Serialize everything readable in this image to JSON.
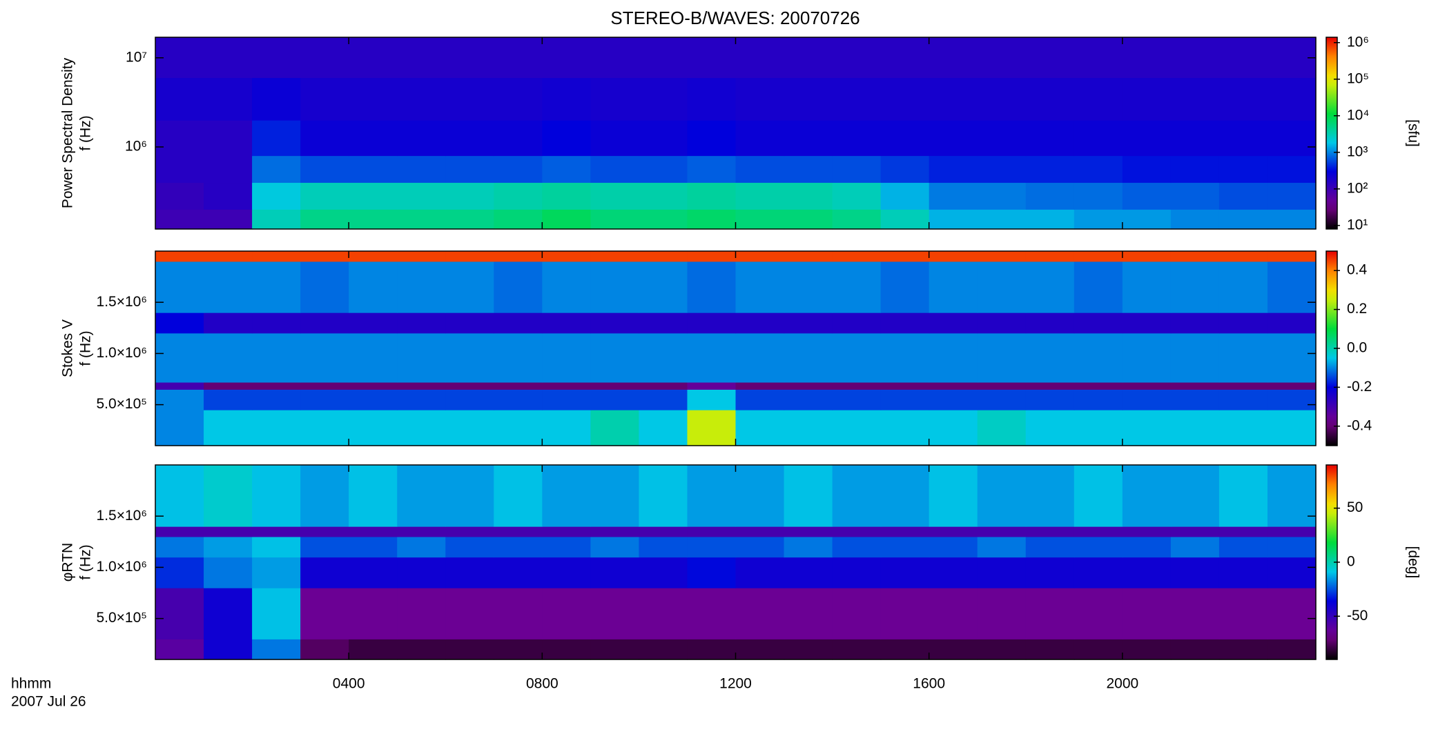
{
  "chart_data": [
    {
      "type": "heatmap",
      "title": "STEREO-B/WAVES: 20070726",
      "ylabel": [
        "Power Spectral Density",
        "f (Hz)"
      ],
      "colorbar_label": "[sfu]",
      "colormap": "rainbow",
      "ylog": true,
      "clog": true,
      "ylim": [
        120000,
        17000000
      ],
      "yticks": [
        {
          "value": 1000000,
          "label": "10⁶"
        },
        {
          "value": 10000000,
          "label": "10⁷"
        }
      ],
      "clim": [
        8,
        1400000
      ],
      "cticks": [
        {
          "value": 10,
          "label": "10¹"
        },
        {
          "value": 100,
          "label": "10²"
        },
        {
          "value": 1000,
          "label": "10³"
        },
        {
          "value": 10000,
          "label": "10⁴"
        },
        {
          "value": 100000,
          "label": "10⁵"
        },
        {
          "value": 1000000,
          "label": "10⁶"
        }
      ],
      "x_edges": [
        0,
        1,
        2,
        3,
        4,
        5,
        6,
        7,
        8,
        9,
        10,
        11,
        12,
        13,
        14,
        15,
        16,
        17,
        18,
        19,
        20,
        21,
        22,
        23,
        24
      ],
      "y_edges": [
        120000,
        200000,
        400000,
        800000,
        2000000,
        6000000,
        17000000
      ],
      "values": [
        [
          100,
          100,
          3000,
          5000,
          5000,
          5000,
          5000,
          6000,
          8000,
          6000,
          6000,
          7000,
          6000,
          6000,
          5000,
          3000,
          1500,
          1500,
          1500,
          1200,
          1200,
          1000,
          1000,
          1000
        ],
        [
          120,
          150,
          2000,
          3000,
          3000,
          3000,
          3000,
          3500,
          4000,
          3500,
          3500,
          4000,
          3500,
          3500,
          3000,
          1500,
          900,
          900,
          800,
          800,
          700,
          700,
          600,
          600
        ],
        [
          150,
          150,
          800,
          600,
          600,
          600,
          600,
          600,
          700,
          600,
          600,
          700,
          600,
          600,
          600,
          500,
          400,
          400,
          400,
          400,
          350,
          350,
          350,
          350
        ],
        [
          150,
          150,
          400,
          250,
          250,
          250,
          250,
          250,
          300,
          250,
          250,
          300,
          250,
          250,
          250,
          250,
          250,
          250,
          250,
          250,
          250,
          250,
          250,
          250
        ],
        [
          200,
          200,
          250,
          200,
          200,
          200,
          200,
          200,
          220,
          200,
          200,
          220,
          200,
          200,
          200,
          200,
          200,
          200,
          200,
          200,
          200,
          200,
          200,
          200
        ],
        [
          150,
          150,
          150,
          150,
          150,
          150,
          150,
          150,
          150,
          150,
          150,
          150,
          150,
          150,
          150,
          150,
          150,
          150,
          150,
          150,
          150,
          150,
          150,
          150
        ]
      ]
    },
    {
      "type": "heatmap",
      "ylabel": [
        "Stokes V",
        "f (Hz)"
      ],
      "colormap": "rainbow",
      "ylog": false,
      "clog": false,
      "ylim": [
        100000,
        2000000
      ],
      "yticks": [
        {
          "value": 500000,
          "label": "5.0×10⁵"
        },
        {
          "value": 1000000,
          "label": "1.0×10⁶"
        },
        {
          "value": 1500000,
          "label": "1.5×10⁶"
        }
      ],
      "clim": [
        -0.5,
        0.5
      ],
      "cticks": [
        -0.4,
        -0.2,
        {
          "value": 0,
          "label": "0.0"
        },
        0.2,
        0.4
      ],
      "x_edges": [
        0,
        1,
        2,
        3,
        4,
        5,
        6,
        7,
        8,
        9,
        10,
        11,
        12,
        13,
        14,
        15,
        16,
        17,
        18,
        19,
        20,
        21,
        22,
        23,
        24
      ],
      "y_edges": [
        100000,
        450000,
        650000,
        720000,
        1200000,
        1400000,
        1900000,
        2000000
      ],
      "values": [
        [
          -0.1,
          -0.05,
          -0.05,
          -0.05,
          -0.05,
          -0.05,
          -0.05,
          -0.05,
          -0.05,
          0.0,
          -0.05,
          0.25,
          -0.05,
          -0.05,
          -0.05,
          -0.05,
          -0.05,
          -0.02,
          -0.05,
          -0.05,
          -0.05,
          -0.05,
          -0.05,
          -0.05
        ],
        [
          -0.1,
          -0.15,
          -0.15,
          -0.15,
          -0.15,
          -0.15,
          -0.15,
          -0.15,
          -0.15,
          -0.15,
          -0.15,
          -0.05,
          -0.15,
          -0.15,
          -0.15,
          -0.15,
          -0.15,
          -0.15,
          -0.15,
          -0.15,
          -0.15,
          -0.15,
          -0.15,
          -0.15
        ],
        [
          -0.3,
          -0.4,
          -0.4,
          -0.4,
          -0.4,
          -0.4,
          -0.4,
          -0.4,
          -0.4,
          -0.4,
          -0.4,
          -0.35,
          -0.4,
          -0.4,
          -0.4,
          -0.4,
          -0.4,
          -0.4,
          -0.4,
          -0.4,
          -0.4,
          -0.4,
          -0.4,
          -0.4
        ],
        [
          -0.1,
          -0.1,
          -0.1,
          -0.1,
          -0.1,
          -0.1,
          -0.1,
          -0.1,
          -0.1,
          -0.1,
          -0.1,
          -0.1,
          -0.1,
          -0.1,
          -0.1,
          -0.1,
          -0.1,
          -0.1,
          -0.1,
          -0.1,
          -0.1,
          -0.1,
          -0.1,
          -0.1
        ],
        [
          -0.2,
          -0.25,
          -0.25,
          -0.25,
          -0.25,
          -0.25,
          -0.25,
          -0.25,
          -0.25,
          -0.25,
          -0.25,
          -0.25,
          -0.25,
          -0.25,
          -0.25,
          -0.25,
          -0.25,
          -0.25,
          -0.25,
          -0.25,
          -0.25,
          -0.25,
          -0.25,
          -0.25
        ],
        [
          -0.1,
          -0.1,
          -0.1,
          -0.12,
          -0.1,
          -0.1,
          -0.1,
          -0.12,
          -0.1,
          -0.1,
          -0.1,
          -0.12,
          -0.1,
          -0.1,
          -0.1,
          -0.12,
          -0.1,
          -0.1,
          -0.1,
          -0.12,
          -0.1,
          -0.1,
          -0.1,
          -0.12
        ],
        [
          0.45,
          0.45,
          0.45,
          0.45,
          0.45,
          0.45,
          0.45,
          0.45,
          0.45,
          0.45,
          0.45,
          0.45,
          0.45,
          0.45,
          0.45,
          0.45,
          0.45,
          0.45,
          0.45,
          0.45,
          0.45,
          0.45,
          0.45,
          0.45
        ]
      ]
    },
    {
      "type": "heatmap",
      "ylabel": [
        "φRTN",
        "f (Hz)"
      ],
      "colorbar_label": "[deg]",
      "colormap": "rainbow",
      "ylog": false,
      "clog": false,
      "ylim": [
        100000,
        2000000
      ],
      "yticks": [
        {
          "value": 500000,
          "label": "5.0×10⁵"
        },
        {
          "value": 1000000,
          "label": "1.0×10⁶"
        },
        {
          "value": 1500000,
          "label": "1.5×10⁶"
        }
      ],
      "clim": [
        -90,
        90
      ],
      "cticks": [
        -50,
        0,
        50
      ],
      "x_edges": [
        0,
        1,
        2,
        3,
        4,
        5,
        6,
        7,
        8,
        9,
        10,
        11,
        12,
        13,
        14,
        15,
        16,
        17,
        18,
        19,
        20,
        21,
        22,
        23,
        24
      ],
      "y_edges": [
        100000,
        300000,
        800000,
        1100000,
        1300000,
        1400000,
        2000000
      ],
      "values": [
        [
          -60,
          -40,
          -20,
          -75,
          -80,
          -80,
          -80,
          -80,
          -80,
          -80,
          -80,
          -80,
          -80,
          -80,
          -80,
          -80,
          -80,
          -80,
          -80,
          -80,
          -80,
          -80,
          -80,
          -80
        ],
        [
          -55,
          -40,
          -10,
          -65,
          -65,
          -65,
          -65,
          -65,
          -65,
          -65,
          -65,
          -65,
          -65,
          -65,
          -65,
          -65,
          -65,
          -65,
          -65,
          -65,
          -65,
          -65,
          -65,
          -65
        ],
        [
          -30,
          -20,
          -15,
          -40,
          -40,
          -40,
          -40,
          -40,
          -40,
          -40,
          -40,
          -35,
          -40,
          -40,
          -40,
          -40,
          -40,
          -40,
          -40,
          -40,
          -40,
          -40,
          -40,
          -40
        ],
        [
          -20,
          -15,
          -10,
          -25,
          -25,
          -20,
          -25,
          -25,
          -25,
          -20,
          -25,
          -25,
          -25,
          -20,
          -25,
          -25,
          -25,
          -20,
          -25,
          -25,
          -25,
          -20,
          -25,
          -25
        ],
        [
          -55,
          -55,
          -55,
          -55,
          -55,
          -55,
          -55,
          -55,
          -55,
          -55,
          -55,
          -55,
          -55,
          -55,
          -55,
          -55,
          -55,
          -55,
          -55,
          -55,
          -55,
          -55,
          -55,
          -55
        ],
        [
          -10,
          -5,
          -10,
          -15,
          -10,
          -15,
          -15,
          -10,
          -15,
          -15,
          -10,
          -15,
          -15,
          -10,
          -15,
          -15,
          -10,
          -15,
          -15,
          -10,
          -15,
          -15,
          -10,
          -15
        ]
      ],
      "xlim": [
        0,
        24
      ],
      "xticks": [
        {
          "value": 4,
          "label": "0400"
        },
        {
          "value": 8,
          "label": "0800"
        },
        {
          "value": 12,
          "label": "1200"
        },
        {
          "value": 16,
          "label": "1600"
        },
        {
          "value": 20,
          "label": "2000"
        }
      ],
      "xlabel": "hhmm",
      "date": "2007 Jul 26"
    }
  ]
}
